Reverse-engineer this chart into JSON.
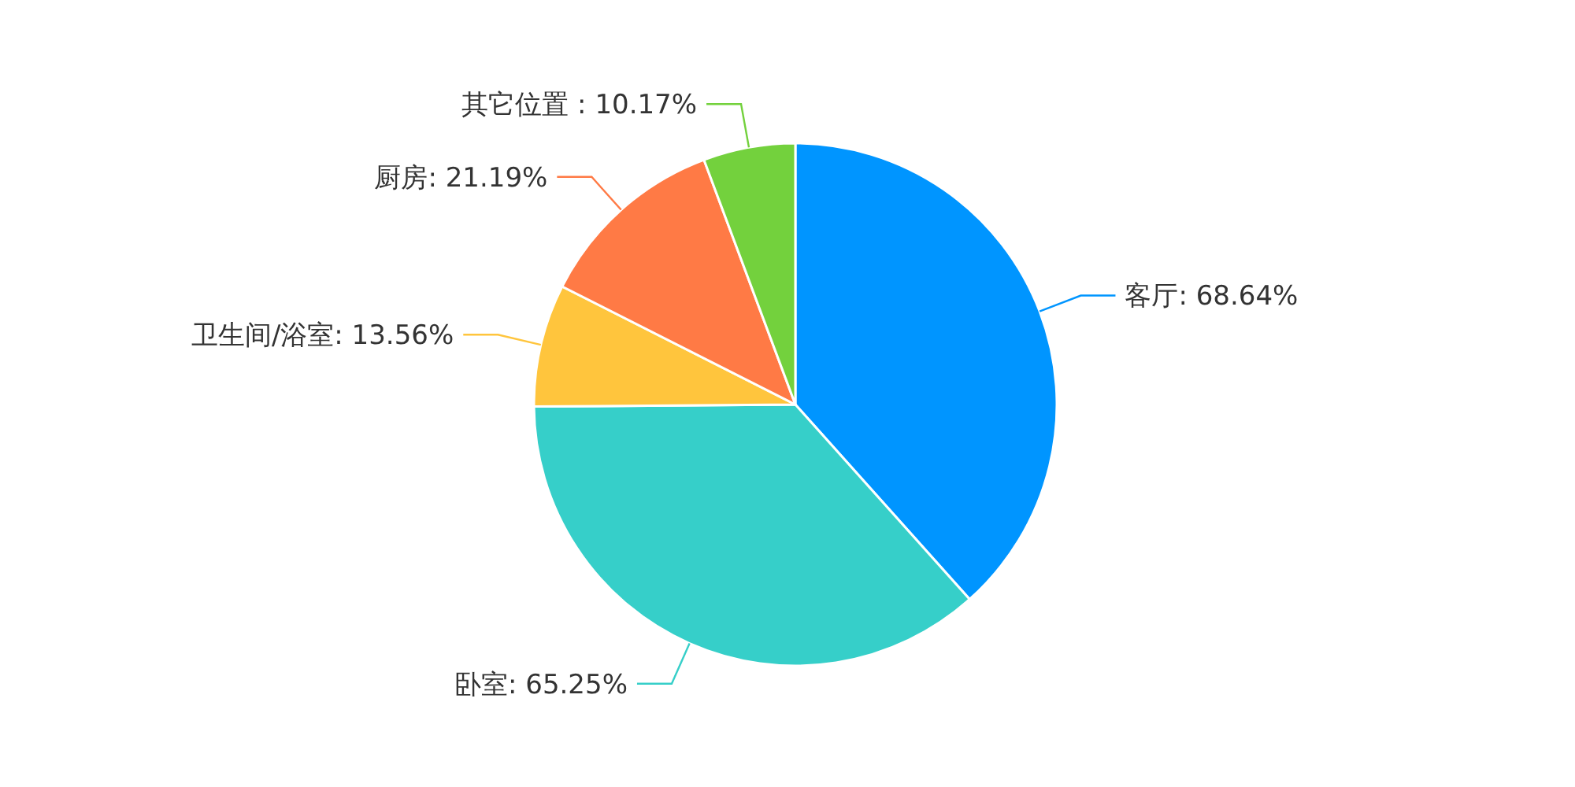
{
  "chart_data": {
    "type": "pie",
    "categories": [
      "客厅",
      "卧室",
      "卫生间/浴室",
      "厨房",
      "其它位置"
    ],
    "values": [
      68.64,
      65.25,
      13.56,
      21.19,
      10.17
    ],
    "colors": [
      "#0095ff",
      "#36cfc9",
      "#ffc53d",
      "#ff7a45",
      "#73d13d"
    ],
    "value_labels": [
      ": 68.64%",
      ": 65.25%",
      ": 13.56%",
      ": 21.19%",
      " : 10.17%"
    ]
  }
}
